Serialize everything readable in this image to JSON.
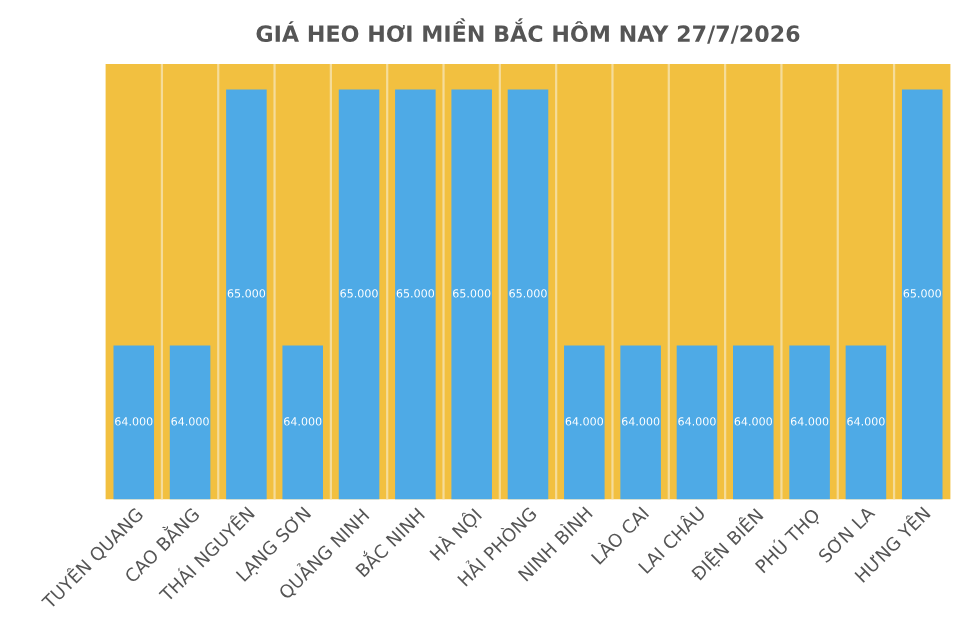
{
  "chart_data": {
    "type": "bar",
    "title": "GIÁ HEO HƠI MIỀN BẮC HÔM NAY 27/7/2026",
    "categories": [
      "TUYÊN QUANG",
      "CAO BẰNG",
      "THÁI NGUYÊN",
      "LẠNG SƠN",
      "QUẢNG NINH",
      "BẮC NINH",
      "HÀ NỘI",
      "HẢI PHÒNG",
      "NINH BÌNH",
      "LÀO CAI",
      "LAI CHÂU",
      "ĐIỆN BIÊN",
      "PHÚ THỌ",
      "SƠN LA",
      "HƯNG YÊN"
    ],
    "values": [
      64000,
      64000,
      65000,
      64000,
      65000,
      65000,
      65000,
      65000,
      64000,
      64000,
      64000,
      64000,
      64000,
      64000,
      65000
    ],
    "value_labels": [
      "64.000",
      "64.000",
      "65.000",
      "64.000",
      "65.000",
      "65.000",
      "65.000",
      "65.000",
      "64.000",
      "64.000",
      "64.000",
      "64.000",
      "64.000",
      "64.000",
      "65.000"
    ],
    "color": "#4eaae6",
    "ylim": [
      63400,
      65100
    ],
    "tick_labels": "x",
    "grid": "x",
    "legend": false
  }
}
